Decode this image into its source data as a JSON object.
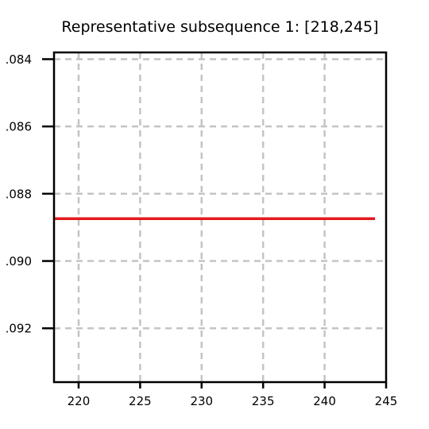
{
  "chart_data": {
    "type": "line",
    "title": "Representative subsequence 1: [218,245]",
    "xlabel": "",
    "ylabel": "",
    "xlim": [
      218,
      245
    ],
    "ylim": [
      -0.0936,
      -0.0838
    ],
    "x_ticks": [
      220,
      225,
      230,
      235,
      240,
      245
    ],
    "x_tick_labels": [
      "220",
      "225",
      "230",
      "235",
      "240",
      "245"
    ],
    "y_ticks": [
      -0.084,
      -0.086,
      -0.088,
      -0.09,
      -0.092
    ],
    "y_tick_labels": [
      ".084",
      ".086",
      ".088",
      ".090",
      ".092"
    ],
    "grid": true,
    "grid_style": "dashed",
    "series": [
      {
        "color": "#e31a1c",
        "x": [
          218,
          244.1
        ],
        "y": [
          -0.08874,
          -0.08874
        ]
      }
    ]
  }
}
